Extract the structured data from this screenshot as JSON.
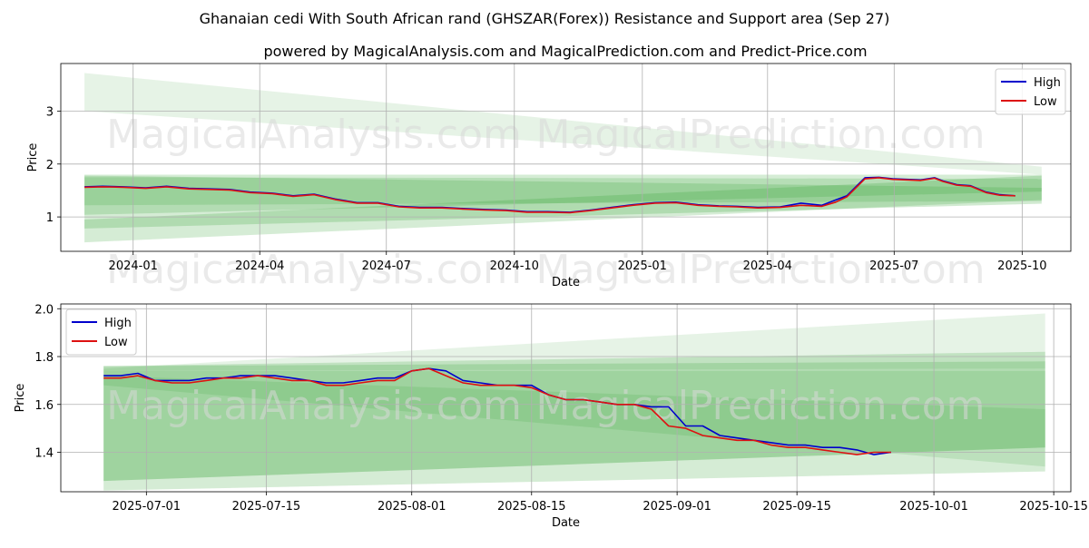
{
  "title": "Ghanaian cedi With South African rand (GHSZAR(Forex)) Resistance and Support area (Sep 27)",
  "subtitle": "powered by MagicalAnalysis.com and MagicalPrediction.com and Predict-Price.com",
  "watermarks": [
    "MagicalAnalysis.com",
    "MagicalPrediction.com"
  ],
  "colors": {
    "high": "#0000cc",
    "low": "#dd1111",
    "band": "#2e9e2e",
    "grid": "#b0b0b0"
  },
  "chart_data": [
    {
      "type": "line",
      "name": "top",
      "xlabel": "Date",
      "ylabel": "Price",
      "xlim": [
        "2023-11-10",
        "2025-11-05"
      ],
      "ylim": [
        0.35,
        3.9
      ],
      "x_ticks": [
        "2024-01-01",
        "2024-04-01",
        "2024-07-01",
        "2024-10-01",
        "2025-01-01",
        "2025-04-01",
        "2025-07-01",
        "2025-10-01"
      ],
      "x_tick_labels": [
        "2024-01",
        "2024-04",
        "2024-07",
        "2024-10",
        "2025-01",
        "2025-04",
        "2025-07",
        "2025-10"
      ],
      "y_ticks": [
        1,
        2,
        3
      ],
      "legend": {
        "position": "upper right",
        "entries": [
          "High",
          "Low"
        ]
      },
      "bands": [
        {
          "x": [
            "2023-11-27",
            "2025-10-15"
          ],
          "upper": [
            3.72,
            1.95
          ],
          "lower": [
            3.0,
            1.8
          ],
          "alpha": 0.12
        },
        {
          "x": [
            "2023-11-27",
            "2025-10-15"
          ],
          "upper": [
            1.8,
            1.8
          ],
          "lower": [
            0.52,
            1.32
          ],
          "alpha": 0.2
        },
        {
          "x": [
            "2023-11-27",
            "2025-10-15"
          ],
          "upper": [
            1.78,
            1.55
          ],
          "lower": [
            1.04,
            1.48
          ],
          "alpha": 0.2
        },
        {
          "x": [
            "2023-11-27",
            "2025-10-15"
          ],
          "upper": [
            1.75,
            1.72
          ],
          "lower": [
            1.22,
            1.3
          ],
          "alpha": 0.18
        },
        {
          "x": [
            "2023-11-27",
            "2025-10-15"
          ],
          "upper": [
            0.95,
            1.78
          ],
          "lower": [
            0.78,
            1.25
          ],
          "alpha": 0.22
        }
      ],
      "series": [
        {
          "name": "High",
          "x": [
            "2023-11-27",
            "2023-12-10",
            "2023-12-25",
            "2024-01-10",
            "2024-01-25",
            "2024-02-10",
            "2024-02-25",
            "2024-03-10",
            "2024-03-25",
            "2024-04-10",
            "2024-04-25",
            "2024-05-10",
            "2024-05-25",
            "2024-06-10",
            "2024-06-25",
            "2024-07-10",
            "2024-07-25",
            "2024-08-10",
            "2024-08-25",
            "2024-09-10",
            "2024-09-25",
            "2024-10-10",
            "2024-10-25",
            "2024-11-10",
            "2024-11-25",
            "2024-12-10",
            "2024-12-25",
            "2025-01-10",
            "2025-01-25",
            "2025-02-10",
            "2025-02-25",
            "2025-03-10",
            "2025-03-25",
            "2025-04-10",
            "2025-04-25",
            "2025-05-10",
            "2025-05-20",
            "2025-05-28",
            "2025-06-10",
            "2025-06-20",
            "2025-06-30",
            "2025-07-10",
            "2025-07-20",
            "2025-07-30",
            "2025-08-05",
            "2025-08-15",
            "2025-08-25",
            "2025-09-05",
            "2025-09-15",
            "2025-09-26"
          ],
          "values": [
            1.57,
            1.58,
            1.57,
            1.55,
            1.58,
            1.54,
            1.53,
            1.52,
            1.47,
            1.45,
            1.4,
            1.43,
            1.34,
            1.27,
            1.27,
            1.2,
            1.18,
            1.18,
            1.16,
            1.14,
            1.13,
            1.1,
            1.1,
            1.09,
            1.13,
            1.18,
            1.23,
            1.27,
            1.28,
            1.23,
            1.21,
            1.2,
            1.18,
            1.19,
            1.26,
            1.22,
            1.32,
            1.4,
            1.74,
            1.75,
            1.72,
            1.71,
            1.7,
            1.74,
            1.68,
            1.61,
            1.59,
            1.47,
            1.42,
            1.4
          ]
        },
        {
          "name": "Low",
          "x": [
            "2023-11-27",
            "2023-12-10",
            "2023-12-25",
            "2024-01-10",
            "2024-01-25",
            "2024-02-10",
            "2024-02-25",
            "2024-03-10",
            "2024-03-25",
            "2024-04-10",
            "2024-04-25",
            "2024-05-10",
            "2024-05-25",
            "2024-06-10",
            "2024-06-25",
            "2024-07-10",
            "2024-07-25",
            "2024-08-10",
            "2024-08-25",
            "2024-09-10",
            "2024-09-25",
            "2024-10-10",
            "2024-10-25",
            "2024-11-10",
            "2024-11-25",
            "2024-12-10",
            "2024-12-25",
            "2025-01-10",
            "2025-01-25",
            "2025-02-10",
            "2025-02-25",
            "2025-03-10",
            "2025-03-25",
            "2025-04-10",
            "2025-04-25",
            "2025-05-10",
            "2025-05-20",
            "2025-05-28",
            "2025-06-10",
            "2025-06-20",
            "2025-06-30",
            "2025-07-10",
            "2025-07-20",
            "2025-07-30",
            "2025-08-05",
            "2025-08-15",
            "2025-08-25",
            "2025-09-05",
            "2025-09-15",
            "2025-09-26"
          ],
          "values": [
            1.56,
            1.57,
            1.56,
            1.54,
            1.57,
            1.53,
            1.52,
            1.51,
            1.46,
            1.44,
            1.39,
            1.42,
            1.33,
            1.26,
            1.26,
            1.19,
            1.17,
            1.17,
            1.15,
            1.13,
            1.12,
            1.09,
            1.09,
            1.08,
            1.12,
            1.17,
            1.22,
            1.26,
            1.27,
            1.22,
            1.2,
            1.19,
            1.17,
            1.18,
            1.22,
            1.2,
            1.28,
            1.38,
            1.72,
            1.74,
            1.71,
            1.7,
            1.69,
            1.73,
            1.67,
            1.6,
            1.58,
            1.46,
            1.41,
            1.4
          ]
        }
      ]
    },
    {
      "type": "line",
      "name": "bottom",
      "xlabel": "Date",
      "ylabel": "Price",
      "xlim": [
        "2025-06-21",
        "2025-10-17"
      ],
      "ylim": [
        1.235,
        2.02
      ],
      "x_ticks": [
        "2025-07-01",
        "2025-07-15",
        "2025-08-01",
        "2025-08-15",
        "2025-09-01",
        "2025-09-15",
        "2025-10-01",
        "2025-10-15"
      ],
      "x_tick_labels": [
        "2025-07-01",
        "2025-07-15",
        "2025-08-01",
        "2025-08-15",
        "2025-09-01",
        "2025-09-15",
        "2025-10-01",
        "2025-10-15"
      ],
      "y_ticks": [
        1.4,
        1.6,
        1.8,
        2.0
      ],
      "legend": {
        "position": "upper left",
        "entries": [
          "High",
          "Low"
        ]
      },
      "bands": [
        {
          "x": [
            "2025-06-26",
            "2025-10-14"
          ],
          "upper": [
            1.75,
            1.98
          ],
          "lower": [
            1.74,
            1.75
          ],
          "alpha": 0.12
        },
        {
          "x": [
            "2025-06-26",
            "2025-10-14"
          ],
          "upper": [
            1.76,
            1.82
          ],
          "lower": [
            1.24,
            1.32
          ],
          "alpha": 0.2
        },
        {
          "x": [
            "2025-06-26",
            "2025-10-14"
          ],
          "upper": [
            1.76,
            1.78
          ],
          "lower": [
            1.28,
            1.42
          ],
          "alpha": 0.2
        },
        {
          "x": [
            "2025-06-26",
            "2025-10-14"
          ],
          "upper": [
            1.74,
            1.74
          ],
          "lower": [
            1.28,
            1.42
          ],
          "alpha": 0.15
        },
        {
          "x": [
            "2025-06-26",
            "2025-10-14"
          ],
          "upper": [
            1.72,
            1.58
          ],
          "lower": [
            1.68,
            1.34
          ],
          "alpha": 0.15
        }
      ],
      "series": [
        {
          "name": "High",
          "x": [
            "2025-06-26",
            "2025-06-28",
            "2025-06-30",
            "2025-07-02",
            "2025-07-04",
            "2025-07-06",
            "2025-07-08",
            "2025-07-10",
            "2025-07-12",
            "2025-07-14",
            "2025-07-16",
            "2025-07-18",
            "2025-07-20",
            "2025-07-22",
            "2025-07-24",
            "2025-07-26",
            "2025-07-28",
            "2025-07-30",
            "2025-08-01",
            "2025-08-03",
            "2025-08-05",
            "2025-08-07",
            "2025-08-09",
            "2025-08-11",
            "2025-08-13",
            "2025-08-15",
            "2025-08-17",
            "2025-08-19",
            "2025-08-21",
            "2025-08-23",
            "2025-08-25",
            "2025-08-27",
            "2025-08-29",
            "2025-08-31",
            "2025-09-02",
            "2025-09-04",
            "2025-09-06",
            "2025-09-08",
            "2025-09-10",
            "2025-09-12",
            "2025-09-14",
            "2025-09-16",
            "2025-09-18",
            "2025-09-20",
            "2025-09-22",
            "2025-09-24",
            "2025-09-26"
          ],
          "values": [
            1.72,
            1.72,
            1.73,
            1.7,
            1.7,
            1.7,
            1.71,
            1.71,
            1.72,
            1.72,
            1.72,
            1.71,
            1.7,
            1.69,
            1.69,
            1.7,
            1.71,
            1.71,
            1.74,
            1.75,
            1.74,
            1.7,
            1.69,
            1.68,
            1.68,
            1.68,
            1.64,
            1.62,
            1.62,
            1.61,
            1.6,
            1.6,
            1.59,
            1.59,
            1.51,
            1.51,
            1.47,
            1.46,
            1.45,
            1.44,
            1.43,
            1.43,
            1.42,
            1.42,
            1.41,
            1.39,
            1.4
          ]
        },
        {
          "name": "Low",
          "x": [
            "2025-06-26",
            "2025-06-28",
            "2025-06-30",
            "2025-07-02",
            "2025-07-04",
            "2025-07-06",
            "2025-07-08",
            "2025-07-10",
            "2025-07-12",
            "2025-07-14",
            "2025-07-16",
            "2025-07-18",
            "2025-07-20",
            "2025-07-22",
            "2025-07-24",
            "2025-07-26",
            "2025-07-28",
            "2025-07-30",
            "2025-08-01",
            "2025-08-03",
            "2025-08-05",
            "2025-08-07",
            "2025-08-09",
            "2025-08-11",
            "2025-08-13",
            "2025-08-15",
            "2025-08-17",
            "2025-08-19",
            "2025-08-21",
            "2025-08-23",
            "2025-08-25",
            "2025-08-27",
            "2025-08-29",
            "2025-08-31",
            "2025-09-02",
            "2025-09-04",
            "2025-09-06",
            "2025-09-08",
            "2025-09-10",
            "2025-09-12",
            "2025-09-14",
            "2025-09-16",
            "2025-09-18",
            "2025-09-20",
            "2025-09-22",
            "2025-09-24",
            "2025-09-26"
          ],
          "values": [
            1.71,
            1.71,
            1.72,
            1.7,
            1.69,
            1.69,
            1.7,
            1.71,
            1.71,
            1.72,
            1.71,
            1.7,
            1.7,
            1.68,
            1.68,
            1.69,
            1.7,
            1.7,
            1.74,
            1.75,
            1.72,
            1.69,
            1.68,
            1.68,
            1.68,
            1.67,
            1.64,
            1.62,
            1.62,
            1.61,
            1.6,
            1.6,
            1.58,
            1.51,
            1.5,
            1.47,
            1.46,
            1.45,
            1.45,
            1.43,
            1.42,
            1.42,
            1.41,
            1.4,
            1.39,
            1.4,
            1.4
          ]
        }
      ]
    }
  ]
}
